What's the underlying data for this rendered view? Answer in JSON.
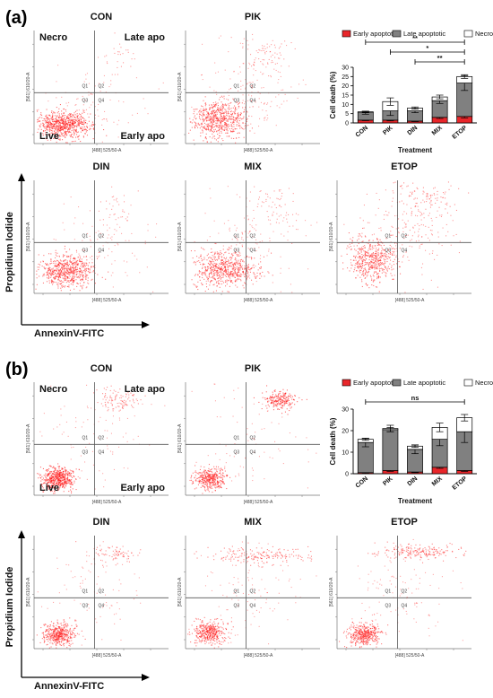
{
  "figure": {
    "panel_labels": [
      "(a)",
      "(b)"
    ],
    "quadrant_labels": {
      "necro": "Necro",
      "late": "Late apo",
      "live": "Live",
      "early": "Early apo"
    },
    "quadrant_ids": [
      "Q1",
      "Q2",
      "Q3",
      "Q4"
    ],
    "flow_axis": {
      "x_label": "[488] 525/50-A",
      "y_label": "[561] 610/20-A"
    },
    "pi_axis_label": "Propidium Iodide",
    "annexin_axis_label": "AnnexinV-FITC",
    "dot_color": "#ff2020",
    "quadrant_line_color": "#555555"
  },
  "chart_data": [
    {
      "type": "scatter",
      "panel": "(a)",
      "description_role": "flow cytometry dot plots",
      "plots": [
        {
          "title": "CON",
          "x_gate": 0.45,
          "y_gate": 0.45,
          "populations": [
            {
              "cx": 0.22,
              "cy": 0.17,
              "sx": 0.1,
              "sy": 0.06,
              "n": 700,
              "opacity": 0.65
            },
            {
              "cx": 0.45,
              "cy": 0.35,
              "sx": 0.2,
              "sy": 0.18,
              "n": 90,
              "opacity": 0.4
            },
            {
              "cx": 0.63,
              "cy": 0.8,
              "sx": 0.07,
              "sy": 0.08,
              "n": 25,
              "opacity": 0.45
            }
          ]
        },
        {
          "title": "PIK",
          "x_gate": 0.45,
          "y_gate": 0.45,
          "populations": [
            {
              "cx": 0.24,
              "cy": 0.22,
              "sx": 0.1,
              "sy": 0.08,
              "n": 650,
              "opacity": 0.6
            },
            {
              "cx": 0.48,
              "cy": 0.52,
              "sx": 0.18,
              "sy": 0.22,
              "n": 160,
              "opacity": 0.4
            },
            {
              "cx": 0.6,
              "cy": 0.8,
              "sx": 0.1,
              "sy": 0.08,
              "n": 60,
              "opacity": 0.45
            }
          ]
        },
        {
          "title": "DIN",
          "x_gate": 0.45,
          "y_gate": 0.45,
          "populations": [
            {
              "cx": 0.24,
              "cy": 0.2,
              "sx": 0.1,
              "sy": 0.07,
              "n": 650,
              "opacity": 0.6
            },
            {
              "cx": 0.48,
              "cy": 0.45,
              "sx": 0.18,
              "sy": 0.2,
              "n": 110,
              "opacity": 0.4
            },
            {
              "cx": 0.62,
              "cy": 0.82,
              "sx": 0.08,
              "sy": 0.08,
              "n": 30,
              "opacity": 0.45
            }
          ]
        },
        {
          "title": "MIX",
          "x_gate": 0.45,
          "y_gate": 0.45,
          "populations": [
            {
              "cx": 0.28,
              "cy": 0.22,
              "sx": 0.12,
              "sy": 0.08,
              "n": 650,
              "opacity": 0.6
            },
            {
              "cx": 0.5,
              "cy": 0.5,
              "sx": 0.2,
              "sy": 0.22,
              "n": 140,
              "opacity": 0.4
            },
            {
              "cx": 0.65,
              "cy": 0.8,
              "sx": 0.1,
              "sy": 0.08,
              "n": 50,
              "opacity": 0.45
            }
          ]
        },
        {
          "title": "ETOP",
          "x_gate": 0.45,
          "y_gate": 0.45,
          "populations": [
            {
              "cx": 0.25,
              "cy": 0.3,
              "sx": 0.09,
              "sy": 0.1,
              "n": 500,
              "opacity": 0.6
            },
            {
              "cx": 0.5,
              "cy": 0.55,
              "sx": 0.18,
              "sy": 0.22,
              "n": 200,
              "opacity": 0.45
            },
            {
              "cx": 0.7,
              "cy": 0.85,
              "sx": 0.12,
              "sy": 0.07,
              "n": 90,
              "opacity": 0.5
            }
          ]
        }
      ]
    },
    {
      "type": "bar",
      "panel": "(a)",
      "stacked": true,
      "categories": [
        "CON",
        "PIK",
        "DIN",
        "MIX",
        "ETOP"
      ],
      "series": [
        {
          "name": "Early apoptotic",
          "color": "#e8262a",
          "values": [
            1.5,
            1.5,
            1.0,
            3.0,
            3.5
          ],
          "errors": [
            0.3,
            0.4,
            0.3,
            0.6,
            0.8
          ]
        },
        {
          "name": "Late apoptotic",
          "color": "#808080",
          "values": [
            4.0,
            5.0,
            5.5,
            9.0,
            18.0
          ],
          "errors": [
            0.8,
            2.5,
            1.0,
            1.5,
            4.0
          ]
        },
        {
          "name": "Necrotic",
          "color": "#ffffff",
          "values": [
            0.5,
            5.0,
            1.5,
            2.0,
            3.5
          ],
          "errors": [
            0.3,
            2.0,
            0.6,
            1.0,
            1.0
          ]
        }
      ],
      "xlabel": "Treatment",
      "ylabel": "Cell death (%)",
      "ylim": [
        0,
        30
      ],
      "yticks": [
        "0",
        "5",
        "10",
        "15",
        "20",
        "25",
        "30"
      ],
      "significance": [
        {
          "from": "CON",
          "to": "ETOP",
          "label": "**"
        },
        {
          "from": "PIK",
          "to": "ETOP",
          "label": "*"
        },
        {
          "from": "DIN",
          "to": "ETOP",
          "label": "**"
        }
      ],
      "legend": "top"
    },
    {
      "type": "scatter",
      "panel": "(b)",
      "description_role": "flow cytometry dot plots",
      "plots": [
        {
          "title": "CON",
          "x_gate": 0.45,
          "y_gate": 0.45,
          "populations": [
            {
              "cx": 0.17,
              "cy": 0.15,
              "sx": 0.06,
              "sy": 0.05,
              "n": 550,
              "opacity": 0.65
            },
            {
              "cx": 0.45,
              "cy": 0.5,
              "sx": 0.2,
              "sy": 0.25,
              "n": 100,
              "opacity": 0.4
            },
            {
              "cx": 0.62,
              "cy": 0.85,
              "sx": 0.08,
              "sy": 0.05,
              "n": 100,
              "opacity": 0.5
            }
          ]
        },
        {
          "title": "PIK",
          "x_gate": 0.45,
          "y_gate": 0.45,
          "populations": [
            {
              "cx": 0.18,
              "cy": 0.15,
              "sx": 0.06,
              "sy": 0.05,
              "n": 400,
              "opacity": 0.6
            },
            {
              "cx": 0.45,
              "cy": 0.5,
              "sx": 0.2,
              "sy": 0.25,
              "n": 80,
              "opacity": 0.4
            },
            {
              "cx": 0.7,
              "cy": 0.84,
              "sx": 0.06,
              "sy": 0.04,
              "n": 220,
              "opacity": 0.65
            }
          ]
        },
        {
          "title": "DIN",
          "x_gate": 0.45,
          "y_gate": 0.45,
          "populations": [
            {
              "cx": 0.18,
              "cy": 0.13,
              "sx": 0.06,
              "sy": 0.05,
              "n": 450,
              "opacity": 0.6
            },
            {
              "cx": 0.45,
              "cy": 0.5,
              "sx": 0.2,
              "sy": 0.25,
              "n": 90,
              "opacity": 0.4
            },
            {
              "cx": 0.6,
              "cy": 0.85,
              "sx": 0.1,
              "sy": 0.04,
              "n": 80,
              "opacity": 0.5
            }
          ]
        },
        {
          "title": "MIX",
          "x_gate": 0.45,
          "y_gate": 0.45,
          "populations": [
            {
              "cx": 0.17,
              "cy": 0.15,
              "sx": 0.06,
              "sy": 0.05,
              "n": 400,
              "opacity": 0.6
            },
            {
              "cx": 0.45,
              "cy": 0.5,
              "sx": 0.2,
              "sy": 0.25,
              "n": 110,
              "opacity": 0.4
            },
            {
              "cx": 0.55,
              "cy": 0.83,
              "sx": 0.18,
              "sy": 0.04,
              "n": 180,
              "opacity": 0.55
            }
          ]
        },
        {
          "title": "ETOP",
          "x_gate": 0.45,
          "y_gate": 0.45,
          "populations": [
            {
              "cx": 0.2,
              "cy": 0.13,
              "sx": 0.06,
              "sy": 0.05,
              "n": 420,
              "opacity": 0.6
            },
            {
              "cx": 0.45,
              "cy": 0.5,
              "sx": 0.2,
              "sy": 0.25,
              "n": 110,
              "opacity": 0.4
            },
            {
              "cx": 0.6,
              "cy": 0.86,
              "sx": 0.16,
              "sy": 0.03,
              "n": 200,
              "opacity": 0.55
            }
          ]
        }
      ]
    },
    {
      "type": "bar",
      "panel": "(b)",
      "stacked": true,
      "categories": [
        "CON",
        "PIK",
        "DIN",
        "MIX",
        "ETOP"
      ],
      "series": [
        {
          "name": "Early apoptotic",
          "color": "#e8262a",
          "values": [
            0.5,
            1.5,
            0.8,
            3.0,
            1.5
          ],
          "errors": [
            0.3,
            0.4,
            0.3,
            0.5,
            0.4
          ]
        },
        {
          "name": "Late apoptotic",
          "color": "#808080",
          "values": [
            14.0,
            19.0,
            10.5,
            13.0,
            18.0
          ],
          "errors": [
            2.0,
            1.0,
            2.0,
            3.0,
            5.0
          ]
        },
        {
          "name": "Necrotic",
          "color": "#ffffff",
          "values": [
            1.5,
            0.5,
            1.5,
            5.5,
            6.5
          ],
          "errors": [
            0.5,
            1.5,
            0.6,
            2.0,
            1.5
          ]
        }
      ],
      "xlabel": "Treatment",
      "ylabel": "Cell death (%)",
      "ylim": [
        0,
        30
      ],
      "yticks": [
        "0",
        "10",
        "20",
        "30"
      ],
      "significance": [
        {
          "from": "CON",
          "to": "ETOP",
          "label": "ns"
        }
      ],
      "legend": "top"
    }
  ]
}
